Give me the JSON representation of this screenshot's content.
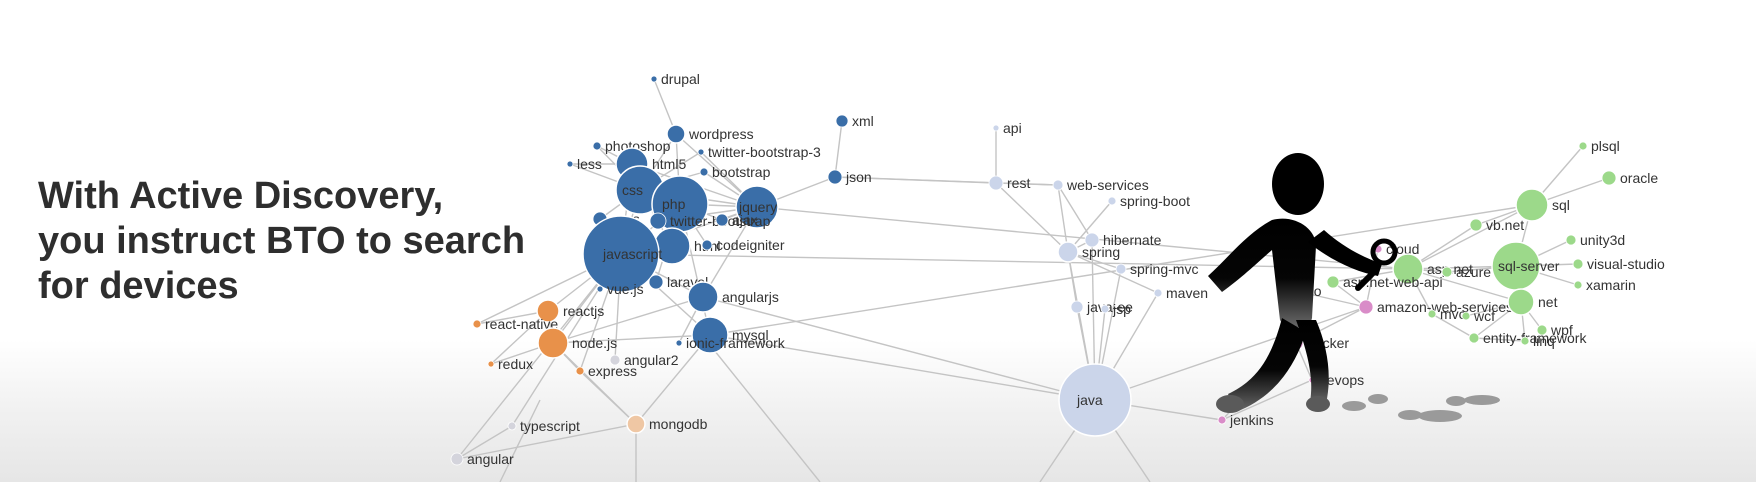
{
  "headline": {
    "line1": "With Active Discovery,",
    "line2": "you instruct BTO to search",
    "line3": "for devices"
  },
  "colors": {
    "web": "#3a6ea8",
    "js": "#e8914a",
    "js_light": "#efc7a4",
    "java": "#cbd5ea",
    "microsoft": "#9cd98a",
    "devops": "#d98cc8",
    "faded": "#d4d4dc",
    "edge": "#c4c4c4",
    "label": "#333333"
  },
  "nodes": [
    {
      "id": "drupal",
      "label": "drupal",
      "size": 3,
      "group": "web"
    },
    {
      "id": "wordpress",
      "label": "wordpress",
      "size": 9,
      "group": "web"
    },
    {
      "id": "photoshop",
      "label": "photoshop",
      "size": 4,
      "group": "web"
    },
    {
      "id": "twitter-bootstrap-3",
      "label": "twitter-bootstrap-3",
      "size": 3,
      "group": "web"
    },
    {
      "id": "less",
      "label": "less",
      "size": 3,
      "group": "web"
    },
    {
      "id": "html5",
      "label": "html5",
      "size": 16,
      "group": "web"
    },
    {
      "id": "bootstrap",
      "label": "bootstrap",
      "size": 4,
      "group": "web"
    },
    {
      "id": "css",
      "label": "css",
      "size": 24,
      "group": "web"
    },
    {
      "id": "php",
      "label": "php",
      "size": 28,
      "group": "web"
    },
    {
      "id": "jquery",
      "label": "jquery",
      "size": 21,
      "group": "web"
    },
    {
      "id": "sass",
      "label": "sass",
      "size": 7,
      "group": "web"
    },
    {
      "id": "twitter-bootstrap",
      "label": "twitter-bootstrap",
      "size": 8,
      "group": "web"
    },
    {
      "id": "ajax",
      "label": "ajax",
      "size": 6,
      "group": "web"
    },
    {
      "id": "html",
      "label": "html",
      "size": 18,
      "group": "web"
    },
    {
      "id": "codeigniter",
      "label": "codeigniter",
      "size": 5,
      "group": "web"
    },
    {
      "id": "javascript",
      "label": "javascript",
      "size": 38,
      "group": "web"
    },
    {
      "id": "vue.js",
      "label": "vue.js",
      "size": 3,
      "group": "web"
    },
    {
      "id": "laravel",
      "label": "laravel",
      "size": 7,
      "group": "web"
    },
    {
      "id": "angularjs",
      "label": "angularjs",
      "size": 15,
      "group": "web"
    },
    {
      "id": "mysql",
      "label": "mysql",
      "size": 18,
      "group": "web"
    },
    {
      "id": "ionic-framework",
      "label": "ionic-framework",
      "size": 3,
      "group": "web"
    },
    {
      "id": "xml",
      "label": "xml",
      "size": 6,
      "group": "web"
    },
    {
      "id": "json",
      "label": "json",
      "size": 7,
      "group": "web"
    },
    {
      "id": "reactjs",
      "label": "reactjs",
      "size": 11,
      "group": "js"
    },
    {
      "id": "react-native",
      "label": "react-native",
      "size": 4,
      "group": "js"
    },
    {
      "id": "node.js",
      "label": "node.js",
      "size": 15,
      "group": "js"
    },
    {
      "id": "redux",
      "label": "redux",
      "size": 3,
      "group": "js"
    },
    {
      "id": "express",
      "label": "express",
      "size": 4,
      "group": "js"
    },
    {
      "id": "angular2",
      "label": "angular2",
      "size": 5,
      "group": "faded"
    },
    {
      "id": "typescript",
      "label": "typescript",
      "size": 4,
      "group": "faded"
    },
    {
      "id": "angular",
      "label": "angular",
      "size": 6,
      "group": "faded"
    },
    {
      "id": "mongodb",
      "label": "mongodb",
      "size": 9,
      "group": "js_light"
    },
    {
      "id": "api",
      "label": "api",
      "size": 3,
      "group": "java"
    },
    {
      "id": "rest",
      "label": "rest",
      "size": 7,
      "group": "java"
    },
    {
      "id": "web-services",
      "label": "web-services",
      "size": 5,
      "group": "java"
    },
    {
      "id": "spring-boot",
      "label": "spring-boot",
      "size": 4,
      "group": "java"
    },
    {
      "id": "hibernate",
      "label": "hibernate",
      "size": 7,
      "group": "java"
    },
    {
      "id": "spring",
      "label": "spring",
      "size": 10,
      "group": "java"
    },
    {
      "id": "spring-mvc",
      "label": "spring-mvc",
      "size": 5,
      "group": "java"
    },
    {
      "id": "maven",
      "label": "maven",
      "size": 4,
      "group": "java"
    },
    {
      "id": "java-ee",
      "label": "java-ee",
      "size": 6,
      "group": "java"
    },
    {
      "id": "jsp",
      "label": "jsp",
      "size": 4,
      "group": "java"
    },
    {
      "id": "java",
      "label": "java",
      "size": 36,
      "group": "java"
    },
    {
      "id": "jenkins",
      "label": "jenkins",
      "size": 4,
      "group": "devops"
    },
    {
      "id": "cloud",
      "label": "cloud",
      "size": 4,
      "group": "devops"
    },
    {
      "id": "go",
      "label": "go",
      "size": 6,
      "group": "devops"
    },
    {
      "id": "amazon-web-services",
      "label": "amazon-web-services",
      "size": 7,
      "group": "devops"
    },
    {
      "id": "docker",
      "label": "docker",
      "size": 7,
      "group": "devops"
    },
    {
      "id": "devops",
      "label": "devops",
      "size": 3,
      "group": "devops"
    },
    {
      "id": "plsql",
      "label": "plsql",
      "size": 4,
      "group": "microsoft"
    },
    {
      "id": "oracle",
      "label": "oracle",
      "size": 7,
      "group": "microsoft"
    },
    {
      "id": "sql",
      "label": "sql",
      "size": 16,
      "group": "microsoft"
    },
    {
      "id": "vb.net",
      "label": "vb.net",
      "size": 6,
      "group": "microsoft"
    },
    {
      "id": "unity3d",
      "label": "unity3d",
      "size": 5,
      "group": "microsoft"
    },
    {
      "id": "asp.net",
      "label": "asp.net",
      "size": 15,
      "group": "microsoft"
    },
    {
      "id": "azure",
      "label": "azure",
      "size": 5,
      "group": "microsoft"
    },
    {
      "id": "sql-server",
      "label": "sql-server",
      "size": 24,
      "group": "microsoft"
    },
    {
      "id": "visual-studio",
      "label": "visual-studio",
      "size": 5,
      "group": "microsoft"
    },
    {
      "id": "asp.net-web-api",
      "label": "asp.net-web-api",
      "size": 6,
      "group": "microsoft"
    },
    {
      "id": "xamarin",
      "label": "xamarin",
      "size": 4,
      "group": "microsoft"
    },
    {
      "id": "net",
      "label": "net",
      "size": 13,
      "group": "microsoft"
    },
    {
      "id": "mvc",
      "label": "mvc",
      "size": 4,
      "group": "microsoft"
    },
    {
      "id": "wcf",
      "label": "wcf",
      "size": 4,
      "group": "microsoft"
    },
    {
      "id": "wpf",
      "label": "wpf",
      "size": 5,
      "group": "microsoft"
    },
    {
      "id": "entity-framework",
      "label": "entity-framework",
      "size": 5,
      "group": "microsoft"
    },
    {
      "id": "linq",
      "label": "linq",
      "size": 4,
      "group": "microsoft"
    }
  ],
  "edges": [
    [
      "drupal",
      "wordpress"
    ],
    [
      "wordpress",
      "php"
    ],
    [
      "wordpress",
      "css"
    ],
    [
      "wordpress",
      "jquery"
    ],
    [
      "photoshop",
      "html5"
    ],
    [
      "photoshop",
      "css"
    ],
    [
      "twitter-bootstrap-3",
      "css"
    ],
    [
      "twitter-bootstrap-3",
      "jquery"
    ],
    [
      "less",
      "css"
    ],
    [
      "less",
      "html5"
    ],
    [
      "html5",
      "css"
    ],
    [
      "html5",
      "javascript"
    ],
    [
      "html5",
      "jquery"
    ],
    [
      "bootstrap",
      "css"
    ],
    [
      "bootstrap",
      "jquery"
    ],
    [
      "css",
      "javascript"
    ],
    [
      "css",
      "php"
    ],
    [
      "css",
      "jquery"
    ],
    [
      "css",
      "html"
    ],
    [
      "php",
      "javascript"
    ],
    [
      "php",
      "jquery"
    ],
    [
      "php",
      "mysql"
    ],
    [
      "php",
      "laravel"
    ],
    [
      "php",
      "codeigniter"
    ],
    [
      "php",
      "ajax"
    ],
    [
      "php",
      "html"
    ],
    [
      "jquery",
      "javascript"
    ],
    [
      "jquery",
      "ajax"
    ],
    [
      "jquery",
      "json"
    ],
    [
      "jquery",
      "angularjs"
    ],
    [
      "jquery",
      "twitter-bootstrap"
    ],
    [
      "sass",
      "css"
    ],
    [
      "twitter-bootstrap",
      "css"
    ],
    [
      "javascript",
      "html"
    ],
    [
      "javascript",
      "angularjs"
    ],
    [
      "javascript",
      "reactjs"
    ],
    [
      "javascript",
      "node.js"
    ],
    [
      "javascript",
      "vue.js"
    ],
    [
      "javascript",
      "laravel"
    ],
    [
      "javascript",
      "mysql"
    ],
    [
      "javascript",
      "react-native"
    ],
    [
      "javascript",
      "express"
    ],
    [
      "javascript",
      "angular2"
    ],
    [
      "javascript",
      "typescript"
    ],
    [
      "javascript",
      "angular"
    ],
    [
      "angularjs",
      "ionic-framework"
    ],
    [
      "angularjs",
      "node.js"
    ],
    [
      "angularjs",
      "java"
    ],
    [
      "mysql",
      "node.js"
    ],
    [
      "mysql",
      "mongodb"
    ],
    [
      "mysql",
      "java"
    ],
    [
      "mysql",
      "sql"
    ],
    [
      "reactjs",
      "react-native"
    ],
    [
      "reactjs",
      "redux"
    ],
    [
      "reactjs",
      "node.js"
    ],
    [
      "node.js",
      "express"
    ],
    [
      "node.js",
      "mongodb"
    ],
    [
      "node.js",
      "redux"
    ],
    [
      "express",
      "mongodb"
    ],
    [
      "mongodb",
      "angular"
    ],
    [
      "typescript",
      "angular"
    ],
    [
      "json",
      "xml"
    ],
    [
      "json",
      "rest"
    ],
    [
      "api",
      "rest"
    ],
    [
      "rest",
      "web-services"
    ],
    [
      "rest",
      "spring"
    ],
    [
      "web-services",
      "spring"
    ],
    [
      "web-services",
      "hibernate"
    ],
    [
      "spring-boot",
      "spring"
    ],
    [
      "hibernate",
      "spring"
    ],
    [
      "spring",
      "spring-mvc"
    ],
    [
      "spring",
      "java-ee"
    ],
    [
      "spring",
      "java"
    ],
    [
      "spring-mvc",
      "java"
    ],
    [
      "hibernate",
      "java"
    ],
    [
      "maven",
      "java"
    ],
    [
      "maven",
      "spring"
    ],
    [
      "java-ee",
      "java"
    ],
    [
      "jsp",
      "java"
    ],
    [
      "java",
      "jenkins"
    ],
    [
      "java",
      "amazon-web-services"
    ],
    [
      "jenkins",
      "devops"
    ],
    [
      "jenkins",
      "docker"
    ],
    [
      "docker",
      "devops"
    ],
    [
      "docker",
      "go"
    ],
    [
      "docker",
      "amazon-web-services"
    ],
    [
      "cloud",
      "amazon-web-services"
    ],
    [
      "go",
      "amazon-web-services"
    ],
    [
      "plsql",
      "sql"
    ],
    [
      "oracle",
      "sql"
    ],
    [
      "sql",
      "sql-server"
    ],
    [
      "sql",
      "asp.net"
    ],
    [
      "sql",
      "vb.net"
    ],
    [
      "vb.net",
      "asp.net"
    ],
    [
      "unity3d",
      "sql-server"
    ],
    [
      "asp.net",
      "sql-server"
    ],
    [
      "asp.net",
      "azure"
    ],
    [
      "asp.net",
      "asp.net-web-api"
    ],
    [
      "asp.net",
      "net"
    ],
    [
      "asp.net",
      "mvc"
    ],
    [
      "sql-server",
      "visual-studio"
    ],
    [
      "sql-server",
      "net"
    ],
    [
      "sql-server",
      "xamarin"
    ],
    [
      "sql-server",
      "azure"
    ],
    [
      "net",
      "wpf"
    ],
    [
      "net",
      "wcf"
    ],
    [
      "net",
      "linq"
    ],
    [
      "net",
      "entity-framework"
    ],
    [
      "entity-framework",
      "linq"
    ],
    [
      "mvc",
      "entity-framework"
    ],
    [
      "asp.net-web-api",
      "amazon-web-services"
    ],
    [
      "jquery",
      "asp.net"
    ],
    [
      "javascript",
      "asp.net"
    ],
    [
      "json",
      "web-services"
    ]
  ]
}
